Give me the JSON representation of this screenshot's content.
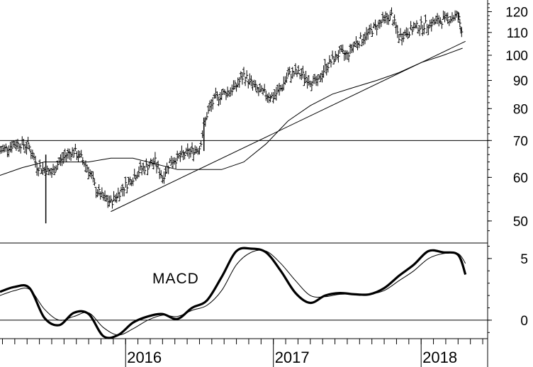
{
  "chart_data": [
    {
      "type": "ohlc",
      "panel": "price",
      "yscale": "log",
      "ylim": [
        46,
        126
      ],
      "yticks": [
        50,
        60,
        70,
        80,
        90,
        100,
        110,
        120
      ],
      "xlim": [
        2015.15,
        2018.45
      ],
      "horizontal_lines": [
        70
      ],
      "trendline": {
        "x": [
          2015.9,
          2018.3
        ],
        "y": [
          52,
          106
        ]
      },
      "moving_average": {
        "x": [
          2015.15,
          2015.3,
          2015.45,
          2015.6,
          2015.75,
          2015.9,
          2016.05,
          2016.2,
          2016.35,
          2016.5,
          2016.65,
          2016.8,
          2016.95,
          2017.1,
          2017.25,
          2017.4,
          2017.55,
          2017.7,
          2017.85,
          2018.0,
          2018.15,
          2018.28
        ],
        "y": [
          60.5,
          62.5,
          64,
          64,
          64,
          65,
          65,
          63.5,
          62,
          62,
          62,
          64,
          69,
          76,
          81,
          85,
          87.5,
          90,
          93,
          97,
          100,
          103
        ]
      },
      "bars": {
        "x": [
          2015.15,
          2015.2,
          2015.25,
          2015.3,
          2015.35,
          2015.4,
          2015.45,
          2015.5,
          2015.55,
          2015.6,
          2015.65,
          2015.7,
          2015.75,
          2015.8,
          2015.85,
          2015.9,
          2015.95,
          2016.0,
          2016.05,
          2016.1,
          2016.15,
          2016.2,
          2016.25,
          2016.3,
          2016.35,
          2016.4,
          2016.45,
          2016.5,
          2016.55,
          2016.6,
          2016.65,
          2016.7,
          2016.75,
          2016.8,
          2016.85,
          2016.9,
          2016.95,
          2017.0,
          2017.05,
          2017.1,
          2017.15,
          2017.2,
          2017.25,
          2017.3,
          2017.35,
          2017.4,
          2017.45,
          2017.5,
          2017.55,
          2017.6,
          2017.65,
          2017.7,
          2017.75,
          2017.8,
          2017.85,
          2017.9,
          2017.95,
          2018.0,
          2018.05,
          2018.1,
          2018.15,
          2018.2,
          2018.25,
          2018.28
        ],
        "close": [
          67,
          68,
          69,
          69,
          68,
          63,
          62,
          61,
          64,
          66,
          67,
          65,
          62,
          57,
          55,
          54,
          56,
          58,
          60,
          62,
          63,
          64,
          60,
          64,
          65,
          66,
          67,
          68,
          78,
          83,
          85,
          86,
          88,
          92,
          89,
          86,
          85,
          84,
          87,
          92,
          93,
          92,
          90,
          89,
          95,
          98,
          101,
          100,
          105,
          107,
          110,
          113,
          116,
          118,
          108,
          110,
          112,
          113,
          114,
          115,
          116,
          117,
          118,
          109
        ]
      }
    },
    {
      "type": "line",
      "panel": "indicator",
      "annotation": "MACD",
      "ylim": [
        -1.5,
        6.2
      ],
      "yticks": [
        0,
        5
      ],
      "xlim": [
        2015.15,
        2018.45
      ],
      "horizontal_lines": [
        0
      ],
      "xticks": [
        2016,
        2017,
        2018
      ],
      "series": [
        {
          "role": "macd",
          "x": [
            2015.15,
            2015.25,
            2015.35,
            2015.45,
            2015.55,
            2015.65,
            2015.75,
            2015.85,
            2015.95,
            2016.05,
            2016.15,
            2016.25,
            2016.35,
            2016.45,
            2016.55,
            2016.65,
            2016.75,
            2016.85,
            2016.95,
            2017.05,
            2017.15,
            2017.25,
            2017.35,
            2017.45,
            2017.55,
            2017.65,
            2017.75,
            2017.85,
            2017.95,
            2018.05,
            2018.15,
            2018.25,
            2018.3
          ],
          "y": [
            2.3,
            2.7,
            2.6,
            0.2,
            -0.4,
            0.6,
            0.5,
            -1.3,
            -1.2,
            -0.2,
            0.3,
            0.5,
            0.1,
            1.0,
            1.6,
            3.5,
            5.6,
            5.8,
            5.5,
            4.0,
            2.2,
            1.4,
            2.0,
            2.2,
            2.1,
            2.1,
            2.6,
            3.6,
            4.5,
            5.6,
            5.5,
            5.3,
            3.7
          ]
        },
        {
          "role": "signal",
          "x": [
            2015.15,
            2015.25,
            2015.35,
            2015.45,
            2015.55,
            2015.65,
            2015.75,
            2015.85,
            2015.95,
            2016.05,
            2016.15,
            2016.25,
            2016.35,
            2016.45,
            2016.55,
            2016.65,
            2016.75,
            2016.85,
            2016.95,
            2017.05,
            2017.15,
            2017.25,
            2017.35,
            2017.45,
            2017.55,
            2017.65,
            2017.75,
            2017.85,
            2017.95,
            2018.05,
            2018.15,
            2018.25,
            2018.3
          ],
          "y": [
            2.0,
            2.4,
            2.5,
            0.9,
            0.0,
            0.3,
            0.6,
            -0.6,
            -1.2,
            -0.7,
            0.0,
            0.4,
            0.3,
            0.8,
            1.2,
            2.4,
            4.5,
            5.5,
            5.6,
            4.6,
            3.2,
            2.0,
            1.9,
            2.1,
            2.1,
            2.1,
            2.4,
            3.2,
            4.0,
            5.0,
            5.4,
            5.4,
            4.6
          ]
        }
      ]
    }
  ]
}
